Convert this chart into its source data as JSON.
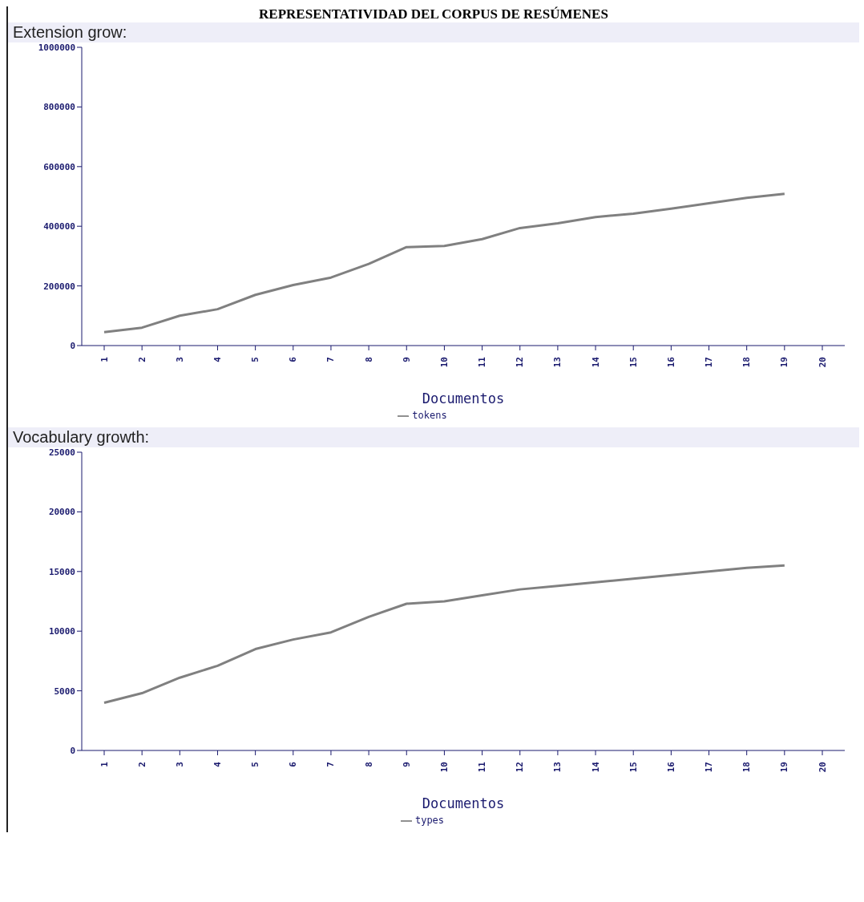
{
  "chart_data": [
    {
      "type": "line",
      "title": "Extension grow:",
      "annotations": [
        "REPRESENTATIVIDAD DEL CORPUS DE RESÚMENES"
      ],
      "xlabel": "Documentos",
      "categories": [
        "1",
        "2",
        "3",
        "4",
        "5",
        "6",
        "7",
        "8",
        "9",
        "10",
        "11",
        "12",
        "13",
        "14",
        "15",
        "16",
        "17",
        "18",
        "19",
        "20"
      ],
      "series": [
        {
          "name": "tokens",
          "color": "#808080",
          "values": [
            45000,
            60000,
            100000,
            122000,
            170000,
            203000,
            228000,
            274000,
            330000,
            334000,
            357000,
            394000,
            410000,
            431000,
            442000,
            459000,
            477000,
            495000,
            509000,
            null
          ]
        }
      ],
      "ylim": [
        0,
        1000000
      ],
      "yticks": [
        0,
        200000,
        400000,
        600000,
        800000,
        1000000
      ],
      "grid": false,
      "legend": "bottom",
      "marker": "none",
      "line_style": "solid"
    },
    {
      "type": "line",
      "title": "Vocabulary growth:",
      "xlabel": "Documentos",
      "categories": [
        "1",
        "2",
        "3",
        "4",
        "5",
        "6",
        "7",
        "8",
        "9",
        "10",
        "11",
        "12",
        "13",
        "14",
        "15",
        "16",
        "17",
        "18",
        "19",
        "20"
      ],
      "series": [
        {
          "name": "types",
          "color": "#808080",
          "values": [
            4000,
            4800,
            6100,
            7100,
            8500,
            9300,
            9900,
            11200,
            12300,
            12500,
            13000,
            13500,
            13800,
            14100,
            14400,
            14700,
            15000,
            15300,
            15500,
            null
          ]
        }
      ],
      "ylim": [
        0,
        25000
      ],
      "yticks": [
        0,
        5000,
        10000,
        15000,
        20000,
        25000
      ],
      "grid": false,
      "legend": "bottom",
      "marker": "none",
      "line_style": "solid"
    }
  ]
}
